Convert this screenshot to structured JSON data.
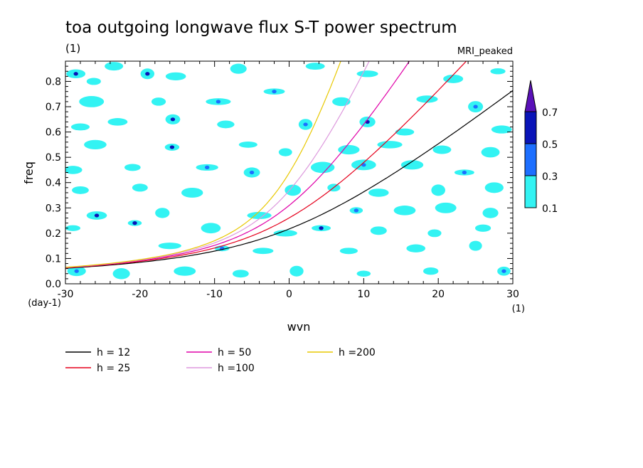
{
  "chart_data": {
    "type": "heatmap",
    "title": "toa outgoing longwave flux S-T power spectrum",
    "subtitle": "(1)",
    "model_label": "MRI_peaked",
    "xlabel": "wvn",
    "ylabel": "freq",
    "x_unit": "(1)",
    "y_unit": "(day-1)",
    "xlim": [
      -30,
      30
    ],
    "ylim": [
      0,
      0.88
    ],
    "x_ticks": [
      -30,
      -20,
      -10,
      0,
      10,
      20,
      30
    ],
    "y_ticks": [
      0.0,
      0.1,
      0.2,
      0.3,
      0.4,
      0.5,
      0.6,
      0.7,
      0.8
    ],
    "x_tick_labels": [
      "-30",
      "-20",
      "-10",
      "0",
      "10",
      "20",
      "30"
    ],
    "y_tick_labels": [
      "0.0",
      "0.1",
      "0.2",
      "0.3",
      "0.4",
      "0.5",
      "0.6",
      "0.7",
      "0.8"
    ],
    "colorbar": {
      "levels": [
        0.1,
        0.3,
        0.5,
        0.7
      ],
      "level_labels": [
        "0.1",
        "0.3",
        "0.5",
        "0.7"
      ],
      "colors": [
        "#33f3f3",
        "#1d6fff",
        "#0a14b8",
        "#5a10b8"
      ]
    },
    "dispersion_curves": [
      {
        "name": "h = 12",
        "h": 12,
        "color": "#000000"
      },
      {
        "name": "h = 25",
        "h": 25,
        "color": "#e5001c"
      },
      {
        "name": "h = 50",
        "h": 50,
        "color": "#e000a8"
      },
      {
        "name": "h =100",
        "h": 100,
        "color": "#dd99dd"
      },
      {
        "name": "h =200",
        "h": 200,
        "color": "#e8c800"
      }
    ],
    "contour_patches": [
      {
        "x": -28.6,
        "y": 0.83,
        "level": 0.5
      },
      {
        "x": -26.2,
        "y": 0.8,
        "level": 0.1
      },
      {
        "x": -23.5,
        "y": 0.86,
        "level": 0.1
      },
      {
        "x": -19.0,
        "y": 0.83,
        "level": 0.5
      },
      {
        "x": -15.2,
        "y": 0.82,
        "level": 0.1
      },
      {
        "x": -6.8,
        "y": 0.85,
        "level": 0.1
      },
      {
        "x": -2.0,
        "y": 0.76,
        "level": 0.3
      },
      {
        "x": 3.5,
        "y": 0.86,
        "level": 0.1
      },
      {
        "x": 10.5,
        "y": 0.83,
        "level": 0.1
      },
      {
        "x": 22.0,
        "y": 0.81,
        "level": 0.1
      },
      {
        "x": 28.0,
        "y": 0.84,
        "level": 0.1
      },
      {
        "x": -26.5,
        "y": 0.72,
        "level": 0.1
      },
      {
        "x": -17.5,
        "y": 0.72,
        "level": 0.1
      },
      {
        "x": -9.5,
        "y": 0.72,
        "level": 0.3
      },
      {
        "x": 7.0,
        "y": 0.72,
        "level": 0.1
      },
      {
        "x": 18.5,
        "y": 0.73,
        "level": 0.1
      },
      {
        "x": 25.0,
        "y": 0.7,
        "level": 0.3
      },
      {
        "x": -28.0,
        "y": 0.62,
        "level": 0.1
      },
      {
        "x": -23.0,
        "y": 0.64,
        "level": 0.1
      },
      {
        "x": -15.6,
        "y": 0.65,
        "level": 0.5
      },
      {
        "x": -8.5,
        "y": 0.63,
        "level": 0.1
      },
      {
        "x": 2.2,
        "y": 0.63,
        "level": 0.3
      },
      {
        "x": 10.5,
        "y": 0.64,
        "level": 0.5
      },
      {
        "x": 15.5,
        "y": 0.6,
        "level": 0.1
      },
      {
        "x": 28.5,
        "y": 0.61,
        "level": 0.1
      },
      {
        "x": -26.0,
        "y": 0.55,
        "level": 0.1
      },
      {
        "x": -15.7,
        "y": 0.54,
        "level": 0.5
      },
      {
        "x": -5.5,
        "y": 0.55,
        "level": 0.1
      },
      {
        "x": -0.5,
        "y": 0.52,
        "level": 0.1
      },
      {
        "x": 8.0,
        "y": 0.53,
        "level": 0.1
      },
      {
        "x": 13.5,
        "y": 0.55,
        "level": 0.1
      },
      {
        "x": 20.5,
        "y": 0.53,
        "level": 0.1
      },
      {
        "x": 27.0,
        "y": 0.52,
        "level": 0.1
      },
      {
        "x": -29.0,
        "y": 0.45,
        "level": 0.1
      },
      {
        "x": -21.0,
        "y": 0.46,
        "level": 0.1
      },
      {
        "x": -11.0,
        "y": 0.46,
        "level": 0.3
      },
      {
        "x": -5.0,
        "y": 0.44,
        "level": 0.3
      },
      {
        "x": 4.5,
        "y": 0.46,
        "level": 0.1
      },
      {
        "x": 10.0,
        "y": 0.47,
        "level": 0.3
      },
      {
        "x": 16.5,
        "y": 0.47,
        "level": 0.1
      },
      {
        "x": 23.5,
        "y": 0.44,
        "level": 0.3
      },
      {
        "x": -28.0,
        "y": 0.37,
        "level": 0.1
      },
      {
        "x": -20.0,
        "y": 0.38,
        "level": 0.1
      },
      {
        "x": -13.0,
        "y": 0.36,
        "level": 0.1
      },
      {
        "x": 0.5,
        "y": 0.37,
        "level": 0.1
      },
      {
        "x": 6.0,
        "y": 0.38,
        "level": 0.1
      },
      {
        "x": 12.0,
        "y": 0.36,
        "level": 0.1
      },
      {
        "x": 20.0,
        "y": 0.37,
        "level": 0.1
      },
      {
        "x": 27.5,
        "y": 0.38,
        "level": 0.1
      },
      {
        "x": -25.8,
        "y": 0.27,
        "level": 0.5
      },
      {
        "x": -17.0,
        "y": 0.28,
        "level": 0.1
      },
      {
        "x": -4.0,
        "y": 0.27,
        "level": 0.1
      },
      {
        "x": 9.0,
        "y": 0.29,
        "level": 0.3
      },
      {
        "x": 15.5,
        "y": 0.29,
        "level": 0.1
      },
      {
        "x": 21.0,
        "y": 0.3,
        "level": 0.1
      },
      {
        "x": 27.0,
        "y": 0.28,
        "level": 0.1
      },
      {
        "x": -29.0,
        "y": 0.22,
        "level": 0.1
      },
      {
        "x": -20.7,
        "y": 0.24,
        "level": 0.5
      },
      {
        "x": -10.5,
        "y": 0.22,
        "level": 0.1
      },
      {
        "x": -0.5,
        "y": 0.2,
        "level": 0.1
      },
      {
        "x": 4.3,
        "y": 0.22,
        "level": 0.5
      },
      {
        "x": 12.0,
        "y": 0.21,
        "level": 0.1
      },
      {
        "x": 19.5,
        "y": 0.2,
        "level": 0.1
      },
      {
        "x": 26.0,
        "y": 0.22,
        "level": 0.1
      },
      {
        "x": -16.0,
        "y": 0.15,
        "level": 0.1
      },
      {
        "x": -9.0,
        "y": 0.14,
        "level": 0.3
      },
      {
        "x": -3.5,
        "y": 0.13,
        "level": 0.1
      },
      {
        "x": 8.0,
        "y": 0.13,
        "level": 0.1
      },
      {
        "x": 17.0,
        "y": 0.14,
        "level": 0.1
      },
      {
        "x": 25.0,
        "y": 0.15,
        "level": 0.1
      },
      {
        "x": -28.5,
        "y": 0.05,
        "level": 0.3
      },
      {
        "x": -22.5,
        "y": 0.04,
        "level": 0.1
      },
      {
        "x": -14.0,
        "y": 0.05,
        "level": 0.1
      },
      {
        "x": -6.5,
        "y": 0.04,
        "level": 0.1
      },
      {
        "x": 1.0,
        "y": 0.05,
        "level": 0.1
      },
      {
        "x": 10.0,
        "y": 0.04,
        "level": 0.1
      },
      {
        "x": 19.0,
        "y": 0.05,
        "level": 0.1
      },
      {
        "x": 28.8,
        "y": 0.05,
        "level": 0.3
      }
    ]
  }
}
